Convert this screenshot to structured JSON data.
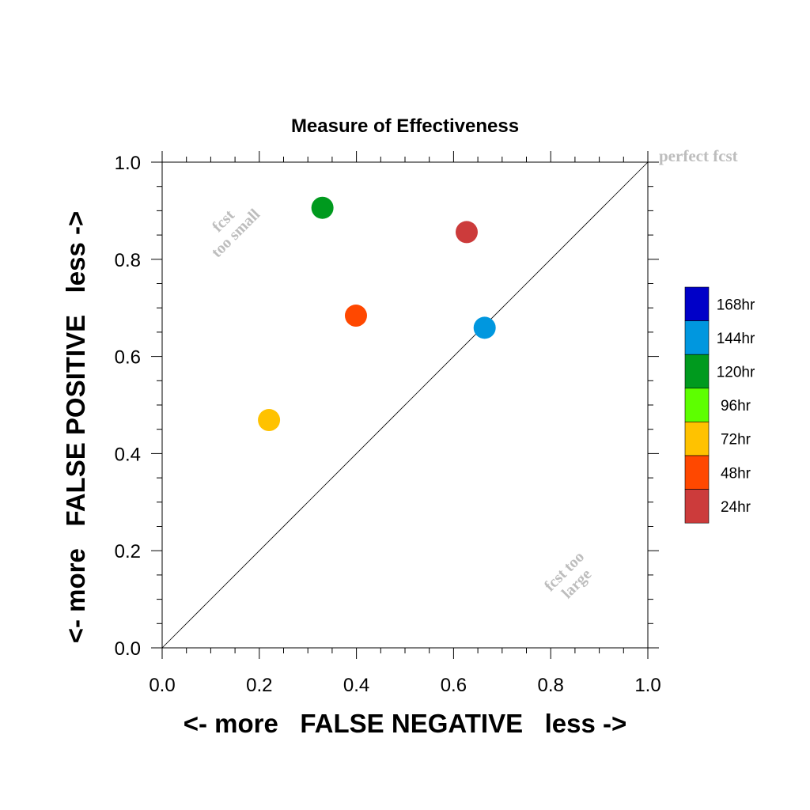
{
  "chart_data": {
    "type": "scatter",
    "title": "Measure of Effectiveness",
    "xlabel": "<- more   FALSE NEGATIVE   less ->",
    "ylabel": "<- more   FALSE POSITIVE   less ->",
    "xlim": [
      0.0,
      1.0
    ],
    "ylim": [
      0.0,
      1.0
    ],
    "x_ticks": [
      "0.0",
      "0.2",
      "0.4",
      "0.6",
      "0.8",
      "1.0"
    ],
    "y_ticks": [
      "0.0",
      "0.2",
      "0.4",
      "0.6",
      "0.8",
      "1.0"
    ],
    "grid": false,
    "reference_line": {
      "from": [
        0,
        0
      ],
      "to": [
        1,
        1
      ]
    },
    "points": [
      {
        "label": "24hr",
        "x": 0.627,
        "y": 0.856,
        "color": "#cc3b3b"
      },
      {
        "label": "48hr",
        "x": 0.399,
        "y": 0.684,
        "color": "#ff4800"
      },
      {
        "label": "72hr",
        "x": 0.22,
        "y": 0.469,
        "color": "#ffc200"
      },
      {
        "label": "120hr",
        "x": 0.33,
        "y": 0.906,
        "color": "#009a1e"
      },
      {
        "label": "144hr",
        "x": 0.664,
        "y": 0.659,
        "color": "#0097df"
      }
    ],
    "legend": {
      "placement": "right",
      "items": [
        {
          "label": "168hr",
          "color": "#0000c8"
        },
        {
          "label": "144hr",
          "color": "#0097df"
        },
        {
          "label": "120hr",
          "color": "#009a1e"
        },
        {
          "label": "96hr",
          "color": "#5dff00"
        },
        {
          "label": "72hr",
          "color": "#ffc200"
        },
        {
          "label": "48hr",
          "color": "#ff4800"
        },
        {
          "label": "24hr",
          "color": "#cc3b3b"
        }
      ]
    },
    "annotations": {
      "perfect": "perfect fcst",
      "too_small_line1": "fcst",
      "too_small_line2": "too small",
      "too_large_line1": "fcst too",
      "too_large_line2": "large"
    }
  }
}
